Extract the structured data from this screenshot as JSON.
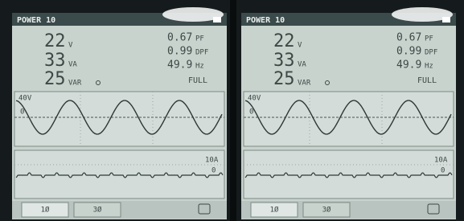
{
  "panels": [
    {
      "header": "POWER 10",
      "readings_left": [
        {
          "value": "22",
          "unit": "V"
        },
        {
          "value": "33",
          "unit": "VA"
        },
        {
          "value": "25",
          "unit": "VAR"
        }
      ],
      "readings_right": [
        {
          "value": "0.67",
          "unit": "PF"
        },
        {
          "value": "0.99",
          "unit": "DPF"
        },
        {
          "value": "49.9",
          "unit": "Hz"
        }
      ],
      "status": "FULL",
      "upper_wave": {
        "scale": "40V",
        "zero": "0"
      },
      "lower_wave": {
        "scale": "10A",
        "zero": "0"
      },
      "tabs": [
        "1Ø",
        "3Ø"
      ]
    },
    {
      "header": "POWER 10",
      "readings_left": [
        {
          "value": "22",
          "unit": "V"
        },
        {
          "value": "33",
          "unit": "VA"
        },
        {
          "value": "25",
          "unit": "VAR"
        }
      ],
      "readings_right": [
        {
          "value": "0.67",
          "unit": "PF"
        },
        {
          "value": "0.99",
          "unit": "DPF"
        },
        {
          "value": "49.9",
          "unit": "Hz"
        }
      ],
      "status": "FULL",
      "upper_wave": {
        "scale": "40V",
        "zero": "0"
      },
      "lower_wave": {
        "scale": "10A",
        "zero": "0"
      },
      "tabs": [
        "1Ø",
        "3Ø"
      ]
    }
  ]
}
